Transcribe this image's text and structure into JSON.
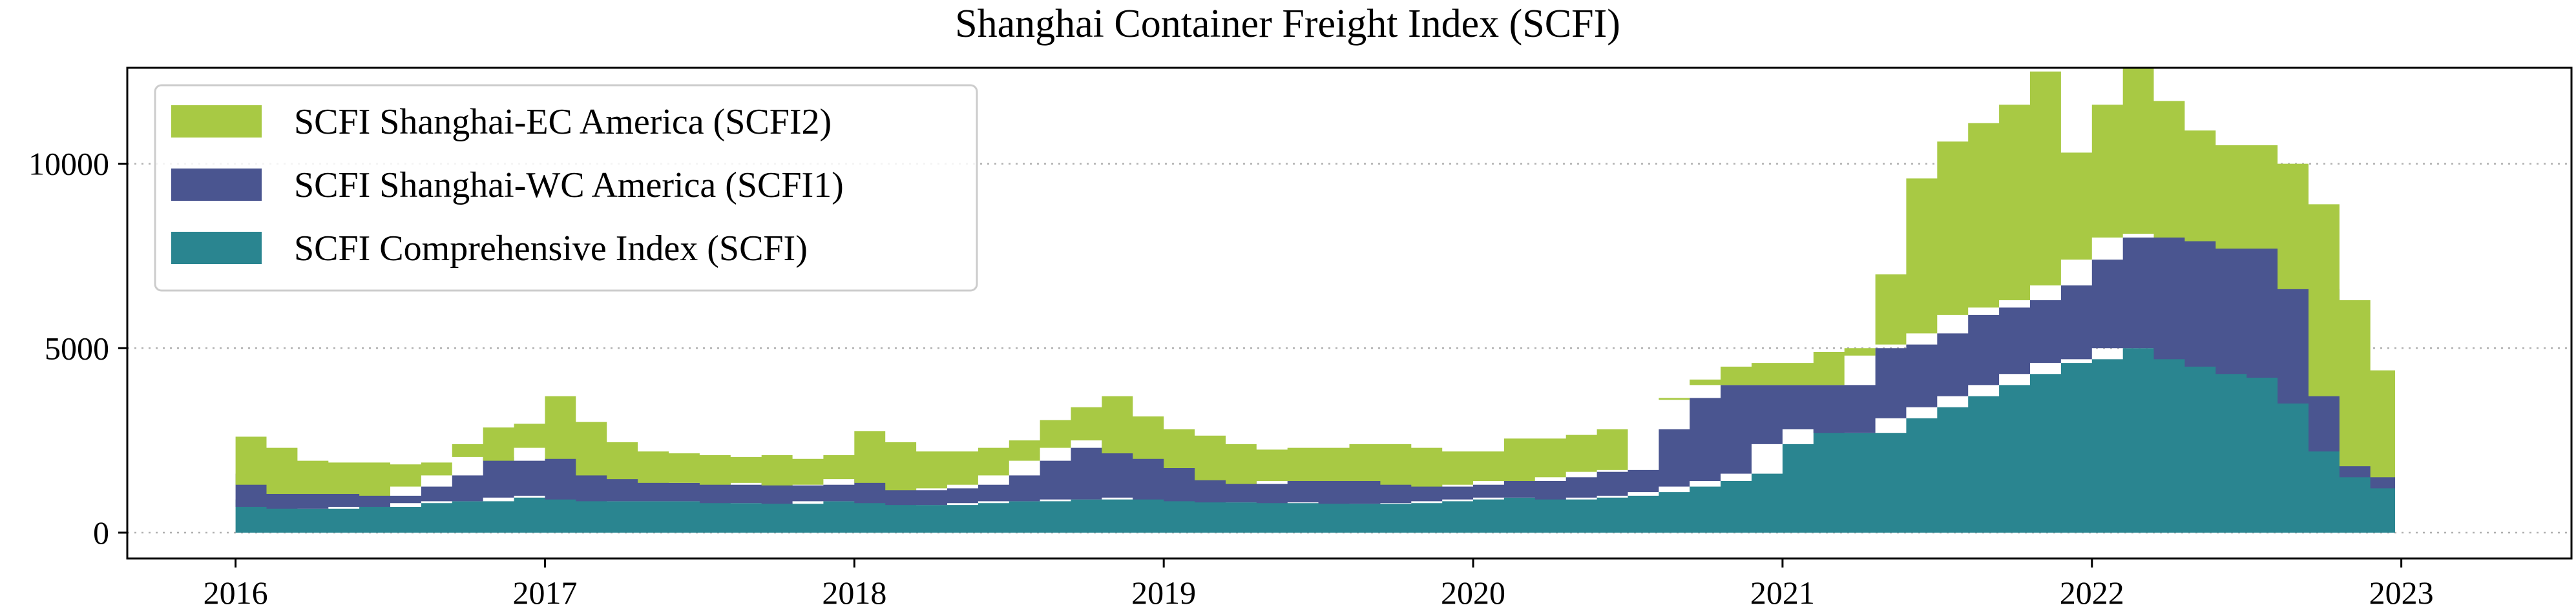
{
  "chart_data": {
    "type": "area",
    "stacked": true,
    "title": "Shanghai Container Freight Index (SCFI)",
    "xlabel": "",
    "ylabel": "",
    "xlim": [
      2015.65,
      2023.55
    ],
    "ylim": [
      -700,
      12600
    ],
    "x_ticks": [
      2016,
      2017,
      2018,
      2019,
      2020,
      2021,
      2022,
      2023
    ],
    "x_tick_labels": [
      "2016",
      "2017",
      "2018",
      "2019",
      "2020",
      "2021",
      "2022",
      "2023"
    ],
    "y_ticks": [
      0,
      5000,
      10000
    ],
    "y_tick_labels": [
      "0",
      "5000",
      "10000"
    ],
    "grid": "y-dotted",
    "legend_position": "upper-left",
    "x": [
      2016.0,
      2016.1,
      2016.2,
      2016.3,
      2016.4,
      2016.5,
      2016.6,
      2016.7,
      2016.8,
      2016.9,
      2017.0,
      2017.1,
      2017.2,
      2017.3,
      2017.4,
      2017.5,
      2017.6,
      2017.7,
      2017.8,
      2017.9,
      2018.0,
      2018.1,
      2018.2,
      2018.3,
      2018.4,
      2018.5,
      2018.6,
      2018.7,
      2018.8,
      2018.9,
      2019.0,
      2019.1,
      2019.2,
      2019.3,
      2019.4,
      2019.5,
      2019.6,
      2019.7,
      2019.8,
      2019.9,
      2020.0,
      2020.1,
      2020.2,
      2020.3,
      2020.4,
      2020.5,
      2020.6,
      2020.7,
      2020.8,
      2020.9,
      2021.0,
      2021.1,
      2021.2,
      2021.3,
      2021.4,
      2021.5,
      2021.6,
      2021.7,
      2021.8,
      2021.9,
      2022.0,
      2022.1,
      2022.2,
      2022.3,
      2022.4,
      2022.5,
      2022.6,
      2022.7,
      2022.8,
      2022.9,
      2022.98
    ],
    "series": [
      {
        "name": "SCFI Comprehensive Index (SCFI)",
        "color": "#2a8590",
        "values": [
          900,
          700,
          650,
          650,
          700,
          700,
          800,
          850,
          850,
          950,
          1000,
          900,
          850,
          850,
          850,
          850,
          800,
          800,
          780,
          850,
          850,
          800,
          750,
          750,
          800,
          850,
          850,
          900,
          900,
          950,
          900,
          850,
          820,
          820,
          800,
          820,
          780,
          780,
          800,
          850,
          900,
          950,
          950,
          900,
          950,
          1000,
          1100,
          1250,
          1400,
          1600,
          2400,
          2800,
          2700,
          2700,
          3100,
          3400,
          3700,
          4000,
          4300,
          4600,
          4700,
          5000,
          5000,
          4700,
          4500,
          4300,
          4200,
          3500,
          2200,
          1500,
          1200
        ]
      },
      {
        "name": "SCFI Shanghai-WC America (SCFI1)",
        "color": "#4a5590",
        "values": [
          700,
          600,
          400,
          400,
          350,
          300,
          450,
          700,
          1200,
          1000,
          1300,
          1100,
          700,
          600,
          500,
          500,
          500,
          550,
          500,
          450,
          600,
          550,
          400,
          450,
          500,
          700,
          1100,
          1400,
          1600,
          1200,
          1100,
          900,
          600,
          500,
          600,
          580,
          620,
          620,
          500,
          400,
          400,
          450,
          450,
          600,
          700,
          700,
          1700,
          2400,
          2600,
          2400,
          1600,
          1200,
          1300,
          2300,
          2000,
          2000,
          2200,
          2100,
          2000,
          2100,
          2700,
          3000,
          3100,
          3300,
          3400,
          3400,
          3500,
          3100,
          1500,
          300,
          300
        ]
      },
      {
        "name": "SCFI Shanghai-EC America (SCFI2)",
        "color": "#a8c944",
        "values": [
          1000,
          1000,
          900,
          850,
          850,
          850,
          650,
          850,
          800,
          1000,
          1400,
          1000,
          900,
          750,
          800,
          750,
          750,
          750,
          720,
          800,
          1300,
          1100,
          1050,
          1000,
          1000,
          950,
          1100,
          1100,
          1200,
          1000,
          800,
          880,
          980,
          930,
          900,
          900,
          1000,
          1000,
          1000,
          950,
          900,
          1150,
          1150,
          1150,
          1150,
          1100,
          800,
          500,
          500,
          600,
          600,
          900,
          800,
          2000,
          4500,
          5200,
          5200,
          5500,
          6200,
          3600,
          4200,
          4600,
          3600,
          2900,
          2600,
          2800,
          2300,
          2300,
          2600,
          2600,
          1600
        ]
      }
    ]
  }
}
